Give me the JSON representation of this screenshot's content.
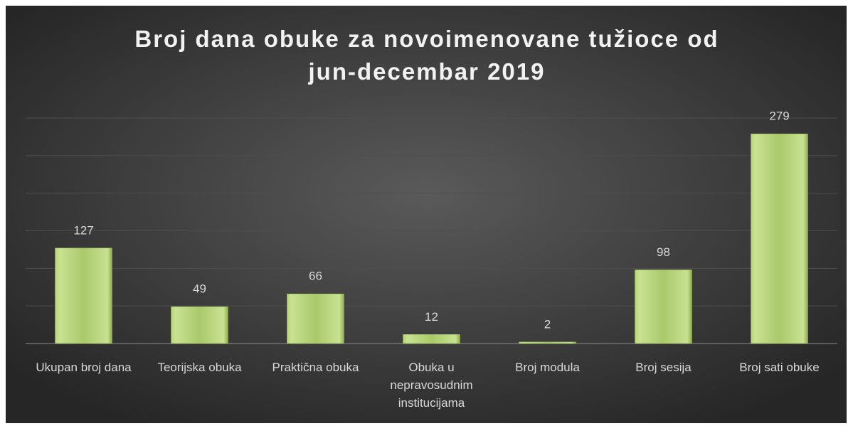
{
  "chart_data": {
    "type": "bar",
    "title": "Broj dana obuke za novoimenovane tužioce od jun-decembar 2019",
    "categories": [
      "Ukupan broj dana",
      "Teorijska obuka",
      "Praktična obuka",
      "Obuka u nepravosudnim institucijama",
      "Broj modula",
      "Broj sesija",
      "Broj sati obuke"
    ],
    "values": [
      127,
      49,
      66,
      12,
      2,
      98,
      279
    ],
    "color": "#9bbb59",
    "ylim": [
      0,
      300
    ],
    "yticks": [
      0,
      50,
      100,
      150,
      200,
      250,
      300
    ],
    "grid": true
  }
}
